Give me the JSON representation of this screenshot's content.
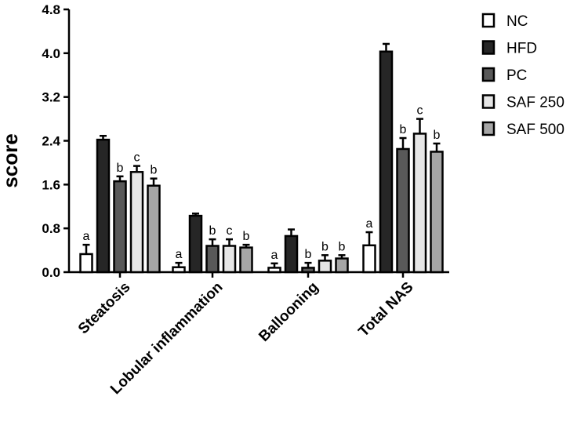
{
  "chart_data": {
    "type": "bar",
    "title": "",
    "xlabel": "",
    "ylabel": "score",
    "ylim": [
      0,
      4.8
    ],
    "yticks": [
      "0.0",
      "0.8",
      "1.6",
      "2.4",
      "3.2",
      "4.0",
      "4.8"
    ],
    "grid": false,
    "legend_position": "top-right",
    "categories": [
      "Steatosis",
      "Lobular inflammation",
      "Ballooning",
      "Total NAS"
    ],
    "series": [
      {
        "name": "NC",
        "color": "#ffffff",
        "values": [
          0.33,
          0.09,
          0.08,
          0.49
        ],
        "errors": [
          0.17,
          0.08,
          0.08,
          0.24
        ],
        "sig": [
          "a",
          "a",
          "a",
          "a"
        ]
      },
      {
        "name": "HFD",
        "color": "#262626",
        "values": [
          2.42,
          1.03,
          0.66,
          4.03
        ],
        "errors": [
          0.07,
          0.04,
          0.12,
          0.14
        ],
        "sig": [
          "",
          "",
          "",
          ""
        ]
      },
      {
        "name": "PC",
        "color": "#595959",
        "values": [
          1.66,
          0.48,
          0.08,
          2.25
        ],
        "errors": [
          0.09,
          0.12,
          0.09,
          0.2
        ],
        "sig": [
          "b",
          "b",
          "b",
          "b"
        ]
      },
      {
        "name": "SAF 250",
        "color": "#e6e6e6",
        "values": [
          1.83,
          0.48,
          0.21,
          2.53
        ],
        "errors": [
          0.11,
          0.12,
          0.1,
          0.27
        ],
        "sig": [
          "c",
          "c",
          "b",
          "c"
        ]
      },
      {
        "name": "SAF 500",
        "color": "#a6a6a6",
        "values": [
          1.58,
          0.45,
          0.25,
          2.2
        ],
        "errors": [
          0.13,
          0.05,
          0.06,
          0.15
        ],
        "sig": [
          "b",
          "b",
          "b",
          "b"
        ]
      }
    ]
  }
}
